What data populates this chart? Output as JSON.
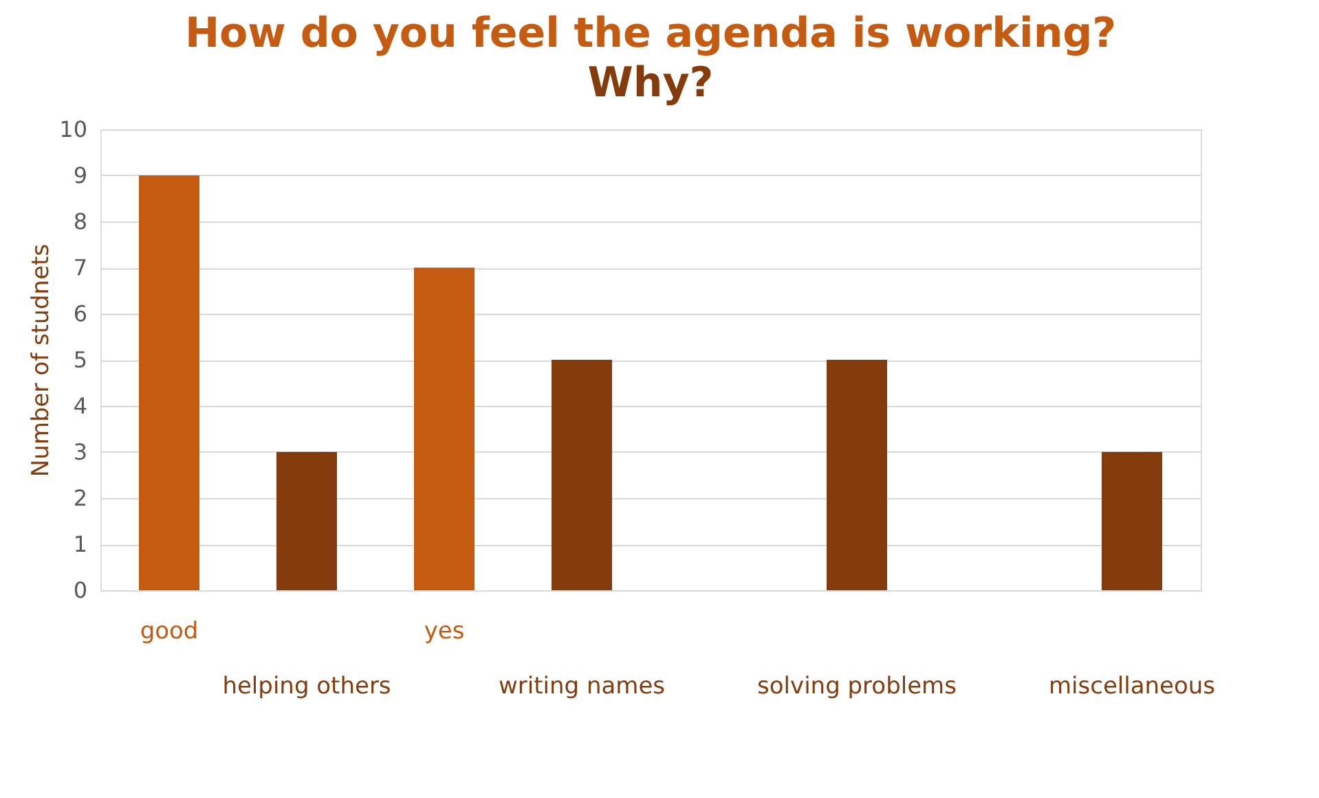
{
  "chart_data": {
    "type": "bar",
    "title": "How do you feel the agenda is working?",
    "subtitle": "Why?",
    "ylabel": "Number of studnets",
    "categories": [
      "good",
      "helping others",
      "yes",
      "writing names",
      null,
      "solving problems",
      null,
      "miscellaneous"
    ],
    "values": [
      9,
      3,
      7,
      5,
      null,
      5,
      null,
      3
    ],
    "colors": [
      "#c55a11",
      "#843c0c",
      "#c55a11",
      "#843c0c",
      "#843c0c",
      "#843c0c",
      "#843c0c",
      "#843c0c"
    ],
    "ylim": [
      0,
      10
    ],
    "yticks": [
      0,
      1,
      2,
      3,
      4,
      5,
      6,
      7,
      8,
      9,
      10
    ],
    "grid": "y"
  }
}
